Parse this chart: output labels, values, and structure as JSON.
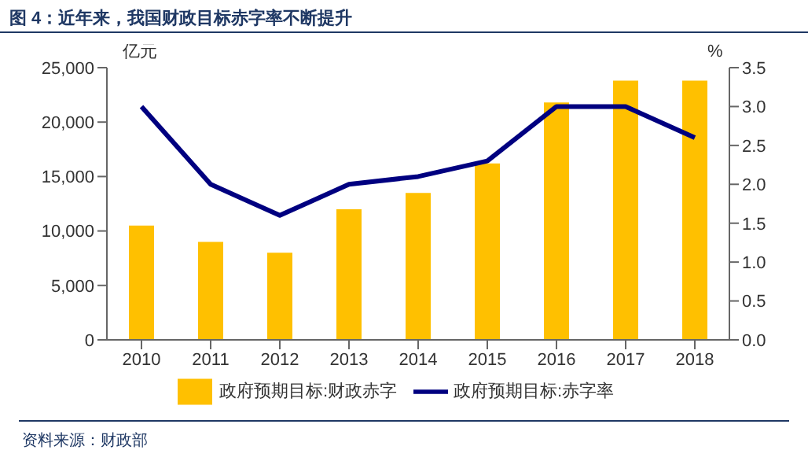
{
  "chart_data": {
    "type": "bar",
    "title": "图 4：近年来，我国财政目标赤字率不断提升",
    "ylabel": "亿元",
    "y2label": "%",
    "categories": [
      "2010",
      "2011",
      "2012",
      "2013",
      "2014",
      "2015",
      "2016",
      "2017",
      "2018"
    ],
    "series": [
      {
        "name": "政府预期目标:财政赤字",
        "color": "#ffc000",
        "values": [
          10500,
          9000,
          8000,
          12000,
          13500,
          16200,
          21800,
          23800,
          23800
        ]
      },
      {
        "name": "政府预期目标:赤字率",
        "type": "line",
        "axis": "y2",
        "color": "#000080",
        "values": [
          3.0,
          2.0,
          1.6,
          2.0,
          2.1,
          2.3,
          3.0,
          3.0,
          2.6
        ]
      }
    ],
    "ylim": [
      0,
      25000
    ],
    "yticks": [
      0,
      {
        "value": 5000,
        "label": "5,000"
      },
      {
        "value": 10000,
        "label": "10,000"
      },
      {
        "value": 15000,
        "label": "15,000"
      },
      {
        "value": 20000,
        "label": "20,000"
      },
      {
        "value": 25000,
        "label": "25,000"
      }
    ],
    "y2lim": [
      0,
      3.5
    ],
    "y2ticks": [
      {
        "value": 0,
        "label": "0.0"
      },
      0.5,
      {
        "value": 1,
        "label": "1.0"
      },
      1.5,
      {
        "value": 2,
        "label": "2.0"
      },
      2.5,
      {
        "value": 3,
        "label": "3.0"
      },
      3.5
    ],
    "legend": "bottom",
    "marker": "none",
    "annotations": [
      "资料来源：财政部"
    ]
  }
}
